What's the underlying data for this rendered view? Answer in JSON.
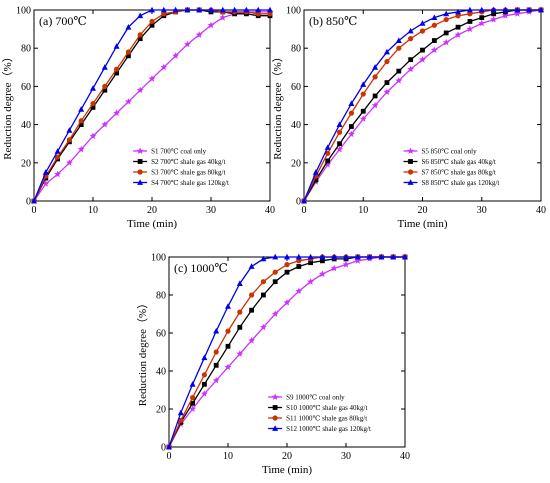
{
  "chart_data": [
    {
      "type": "line",
      "panel_label": "(a) 700℃",
      "xlabel": "Time (min)",
      "ylabel": "Reduction degree（%）",
      "xlim": [
        0,
        40
      ],
      "ylim": [
        0,
        100
      ],
      "xticks": [
        0,
        10,
        20,
        30,
        40
      ],
      "yticks": [
        0,
        20,
        40,
        60,
        80,
        100
      ],
      "legend_position": "bottom-right",
      "series": [
        {
          "name": "S1 700℃ coal only",
          "color": "#cc33ff",
          "marker": "star",
          "x": [
            0,
            2,
            4,
            6,
            8,
            10,
            12,
            14,
            16,
            18,
            20,
            22,
            24,
            26,
            28,
            30,
            32,
            34,
            36,
            38,
            40
          ],
          "y": [
            0,
            9,
            14,
            20,
            27,
            34,
            40,
            46,
            52,
            58,
            64,
            70,
            76,
            82,
            87,
            92,
            96,
            98,
            99,
            99,
            99
          ]
        },
        {
          "name": "S2 700℃ shale gas 40kg/t",
          "color": "#000000",
          "marker": "square",
          "x": [
            0,
            2,
            4,
            6,
            8,
            10,
            12,
            14,
            16,
            18,
            20,
            22,
            24,
            26,
            28,
            30,
            32,
            34,
            36,
            38,
            40
          ],
          "y": [
            0,
            12,
            22,
            31,
            40,
            49,
            58,
            67,
            76,
            85,
            92,
            97,
            99,
            100,
            100,
            99,
            99,
            98,
            98,
            97,
            97
          ]
        },
        {
          "name": "S3 700℃ shale gas 80kg/t",
          "color": "#cc3300",
          "marker": "circle",
          "x": [
            0,
            2,
            4,
            6,
            8,
            10,
            12,
            14,
            16,
            18,
            20,
            22,
            24,
            26,
            28,
            30,
            32,
            34,
            36,
            38,
            40
          ],
          "y": [
            0,
            13,
            23,
            32,
            42,
            51,
            60,
            69,
            78,
            87,
            94,
            98,
            99,
            100,
            100,
            100,
            99,
            99,
            99,
            98,
            98
          ]
        },
        {
          "name": "S4 700℃ shale gas 120kg/t",
          "color": "#0000ee",
          "marker": "triangle",
          "x": [
            0,
            2,
            4,
            6,
            8,
            10,
            12,
            14,
            16,
            18,
            20,
            22,
            24,
            26,
            28,
            30,
            32,
            34,
            36,
            38,
            40
          ],
          "y": [
            0,
            15,
            26,
            37,
            48,
            59,
            70,
            81,
            91,
            97,
            100,
            100,
            100,
            100,
            100,
            100,
            100,
            100,
            100,
            100,
            100
          ]
        }
      ]
    },
    {
      "type": "line",
      "panel_label": "(b) 850℃",
      "xlabel": "Time (min)",
      "ylabel": "Reduction degree（%）",
      "xlim": [
        0,
        40
      ],
      "ylim": [
        0,
        100
      ],
      "xticks": [
        0,
        10,
        20,
        30,
        40
      ],
      "yticks": [
        0,
        20,
        40,
        60,
        80,
        100
      ],
      "legend_position": "bottom-right",
      "series": [
        {
          "name": "S5  850℃ coal only",
          "color": "#cc33ff",
          "marker": "star",
          "x": [
            0,
            2,
            4,
            6,
            8,
            10,
            12,
            14,
            16,
            18,
            20,
            22,
            24,
            26,
            28,
            30,
            32,
            34,
            36,
            38,
            40
          ],
          "y": [
            0,
            10,
            19,
            27,
            35,
            43,
            50,
            57,
            63,
            69,
            74,
            79,
            83,
            87,
            90,
            93,
            95,
            97,
            98,
            99,
            100
          ]
        },
        {
          "name": "S6  850℃ shale gas 40kg/t",
          "color": "#000000",
          "marker": "square",
          "x": [
            0,
            2,
            4,
            6,
            8,
            10,
            12,
            14,
            16,
            18,
            20,
            22,
            24,
            26,
            28,
            30,
            32,
            34,
            36,
            38,
            40
          ],
          "y": [
            0,
            11,
            21,
            30,
            39,
            47,
            55,
            62,
            68,
            74,
            79,
            84,
            88,
            91,
            94,
            96,
            98,
            99,
            100,
            100,
            100
          ]
        },
        {
          "name": "S7  850℃ shale gas 80kg/t",
          "color": "#cc3300",
          "marker": "circle",
          "x": [
            0,
            2,
            4,
            6,
            8,
            10,
            12,
            14,
            16,
            18,
            20,
            22,
            24,
            26,
            28,
            30,
            32,
            34,
            36,
            38,
            40
          ],
          "y": [
            0,
            13,
            25,
            36,
            46,
            56,
            65,
            73,
            80,
            85,
            89,
            92,
            95,
            97,
            98,
            99,
            100,
            100,
            100,
            100,
            100
          ]
        },
        {
          "name": "S8  850℃ shale gas 120kg/t",
          "color": "#0000ee",
          "marker": "triangle",
          "x": [
            0,
            2,
            4,
            6,
            8,
            10,
            12,
            14,
            16,
            18,
            20,
            22,
            24,
            26,
            28,
            30,
            32,
            34,
            36,
            38,
            40
          ],
          "y": [
            0,
            15,
            28,
            40,
            51,
            61,
            70,
            78,
            84,
            89,
            93,
            96,
            98,
            99,
            100,
            100,
            100,
            100,
            100,
            100,
            100
          ]
        }
      ]
    },
    {
      "type": "line",
      "panel_label": "(c) 1000℃",
      "xlabel": "Time (min)",
      "ylabel": "Reduction degree（%）",
      "xlim": [
        0,
        40
      ],
      "ylim": [
        0,
        100
      ],
      "xticks": [
        0,
        10,
        20,
        30,
        40
      ],
      "yticks": [
        0,
        20,
        40,
        60,
        80,
        100
      ],
      "legend_position": "bottom-right",
      "series": [
        {
          "name": "S9  1000℃ coal only",
          "color": "#cc33ff",
          "marker": "star",
          "x": [
            0,
            2,
            4,
            6,
            8,
            10,
            12,
            14,
            16,
            18,
            20,
            22,
            24,
            26,
            28,
            30,
            32,
            34,
            36,
            38,
            40
          ],
          "y": [
            0,
            12,
            20,
            28,
            35,
            42,
            49,
            56,
            63,
            70,
            76,
            82,
            87,
            91,
            94,
            96,
            98,
            99,
            100,
            100,
            100
          ]
        },
        {
          "name": "S10 1000℃ shale gas 40kg/t",
          "color": "#000000",
          "marker": "square",
          "x": [
            0,
            2,
            4,
            6,
            8,
            10,
            12,
            14,
            16,
            18,
            20,
            22,
            24,
            26,
            28,
            30,
            32,
            34,
            36,
            38,
            40
          ],
          "y": [
            0,
            13,
            23,
            33,
            43,
            53,
            63,
            72,
            80,
            87,
            92,
            95,
            97,
            98,
            99,
            99,
            100,
            100,
            100,
            100,
            100
          ]
        },
        {
          "name": "S11 1000℃ shale gas 80kg/t",
          "color": "#cc3300",
          "marker": "circle",
          "x": [
            0,
            2,
            4,
            6,
            8,
            10,
            12,
            14,
            16,
            18,
            20,
            22,
            24,
            26,
            28,
            30,
            32,
            34,
            36,
            38,
            40
          ],
          "y": [
            0,
            14,
            26,
            38,
            50,
            61,
            71,
            80,
            87,
            92,
            96,
            98,
            99,
            100,
            100,
            100,
            100,
            100,
            100,
            100,
            100
          ]
        },
        {
          "name": "S12 1000℃ shale gas 120kg/t",
          "color": "#0000ee",
          "marker": "triangle",
          "x": [
            0,
            2,
            4,
            6,
            8,
            10,
            12,
            14,
            16,
            18,
            20,
            22,
            24,
            26,
            28,
            30,
            32,
            34,
            36,
            38,
            40
          ],
          "y": [
            0,
            18,
            33,
            47,
            61,
            74,
            86,
            95,
            99,
            100,
            100,
            100,
            100,
            100,
            100,
            100,
            100,
            100,
            100,
            100,
            100
          ]
        }
      ]
    }
  ]
}
